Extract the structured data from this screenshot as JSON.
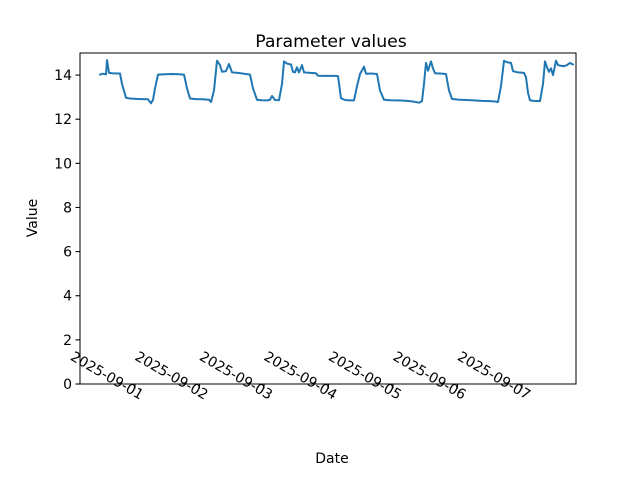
{
  "figure": {
    "title": "Parameter values",
    "xlabel": "Date",
    "ylabel": "Value"
  },
  "chart_data": {
    "type": "line",
    "title": "Parameter values",
    "xlabel": "Date",
    "ylabel": "Value",
    "legend": "none",
    "grid": false,
    "line_color": "#1f77b4",
    "axis_color": "#000000",
    "background_color": "#ffffff",
    "x_unit": "days relative to 2025-09-01 00:00",
    "x_tick_days": [
      0,
      1,
      2,
      3,
      4,
      5,
      6
    ],
    "x_tick_labels": [
      "2025-09-01",
      "2025-09-02",
      "2025-09-03",
      "2025-09-04",
      "2025-09-05",
      "2025-09-06",
      "2025-09-07"
    ],
    "x_tick_rotation_deg": 30,
    "xlim_days": [
      -0.853,
      6.837
    ],
    "y_ticks": [
      0,
      2,
      4,
      6,
      8,
      10,
      12,
      14
    ],
    "ylim": [
      0,
      15
    ],
    "series": [
      {
        "name": "parameter-values",
        "points": [
          [
            -0.543,
            14.02
          ],
          [
            -0.496,
            14.06
          ],
          [
            -0.45,
            14.03
          ],
          [
            -0.434,
            14.68
          ],
          [
            -0.403,
            14.1
          ],
          [
            -0.357,
            14.08
          ],
          [
            -0.28,
            14.07
          ],
          [
            -0.233,
            14.07
          ],
          [
            -0.202,
            13.6
          ],
          [
            -0.14,
            12.97
          ],
          [
            -0.078,
            12.94
          ],
          [
            0.016,
            12.92
          ],
          [
            0.109,
            12.91
          ],
          [
            0.202,
            12.9
          ],
          [
            0.248,
            12.72
          ],
          [
            0.279,
            12.88
          ],
          [
            0.31,
            13.4
          ],
          [
            0.357,
            14.02
          ],
          [
            0.465,
            14.04
          ],
          [
            0.574,
            14.05
          ],
          [
            0.68,
            14.04
          ],
          [
            0.76,
            14.02
          ],
          [
            0.806,
            13.4
          ],
          [
            0.853,
            12.94
          ],
          [
            0.946,
            12.91
          ],
          [
            1.054,
            12.9
          ],
          [
            1.147,
            12.88
          ],
          [
            1.178,
            12.78
          ],
          [
            1.225,
            13.3
          ],
          [
            1.271,
            14.65
          ],
          [
            1.318,
            14.45
          ],
          [
            1.349,
            14.15
          ],
          [
            1.411,
            14.18
          ],
          [
            1.457,
            14.5
          ],
          [
            1.504,
            14.12
          ],
          [
            1.597,
            14.1
          ],
          [
            1.69,
            14.06
          ],
          [
            1.783,
            14.02
          ],
          [
            1.829,
            13.4
          ],
          [
            1.891,
            12.88
          ],
          [
            1.969,
            12.86
          ],
          [
            2.046,
            12.85
          ],
          [
            2.093,
            12.88
          ],
          [
            2.124,
            13.05
          ],
          [
            2.171,
            12.87
          ],
          [
            2.233,
            12.86
          ],
          [
            2.279,
            13.6
          ],
          [
            2.31,
            14.62
          ],
          [
            2.357,
            14.52
          ],
          [
            2.419,
            14.48
          ],
          [
            2.45,
            14.15
          ],
          [
            2.481,
            14.12
          ],
          [
            2.512,
            14.35
          ],
          [
            2.543,
            14.12
          ],
          [
            2.589,
            14.45
          ],
          [
            2.62,
            14.12
          ],
          [
            2.713,
            14.1
          ],
          [
            2.806,
            14.08
          ],
          [
            2.837,
            13.97
          ],
          [
            2.961,
            13.96
          ],
          [
            3.1,
            13.96
          ],
          [
            3.147,
            13.95
          ],
          [
            3.194,
            12.95
          ],
          [
            3.256,
            12.87
          ],
          [
            3.333,
            12.85
          ],
          [
            3.395,
            12.85
          ],
          [
            3.442,
            13.5
          ],
          [
            3.488,
            14.05
          ],
          [
            3.55,
            14.38
          ],
          [
            3.581,
            14.06
          ],
          [
            3.659,
            14.07
          ],
          [
            3.752,
            14.05
          ],
          [
            3.798,
            13.3
          ],
          [
            3.86,
            12.88
          ],
          [
            3.953,
            12.86
          ],
          [
            4.078,
            12.85
          ],
          [
            4.202,
            12.84
          ],
          [
            4.31,
            12.8
          ],
          [
            4.403,
            12.75
          ],
          [
            4.45,
            12.82
          ],
          [
            4.481,
            13.6
          ],
          [
            4.512,
            14.55
          ],
          [
            4.543,
            14.2
          ],
          [
            4.589,
            14.62
          ],
          [
            4.62,
            14.3
          ],
          [
            4.651,
            14.08
          ],
          [
            4.729,
            14.07
          ],
          [
            4.822,
            14.05
          ],
          [
            4.868,
            13.3
          ],
          [
            4.915,
            12.92
          ],
          [
            5.008,
            12.89
          ],
          [
            5.132,
            12.87
          ],
          [
            5.256,
            12.85
          ],
          [
            5.38,
            12.83
          ],
          [
            5.504,
            12.82
          ],
          [
            5.581,
            12.8
          ],
          [
            5.628,
            12.78
          ],
          [
            5.674,
            13.5
          ],
          [
            5.721,
            14.65
          ],
          [
            5.767,
            14.58
          ],
          [
            5.829,
            14.55
          ],
          [
            5.86,
            14.18
          ],
          [
            5.922,
            14.13
          ],
          [
            6.031,
            14.1
          ],
          [
            6.062,
            13.9
          ],
          [
            6.093,
            13.2
          ],
          [
            6.124,
            12.85
          ],
          [
            6.186,
            12.83
          ],
          [
            6.279,
            12.82
          ],
          [
            6.326,
            13.6
          ],
          [
            6.357,
            14.62
          ],
          [
            6.388,
            14.35
          ],
          [
            6.419,
            14.15
          ],
          [
            6.45,
            14.3
          ],
          [
            6.481,
            14.0
          ],
          [
            6.527,
            14.65
          ],
          [
            6.558,
            14.45
          ],
          [
            6.605,
            14.42
          ],
          [
            6.651,
            14.4
          ],
          [
            6.698,
            14.45
          ],
          [
            6.744,
            14.55
          ],
          [
            6.791,
            14.48
          ]
        ]
      }
    ]
  }
}
